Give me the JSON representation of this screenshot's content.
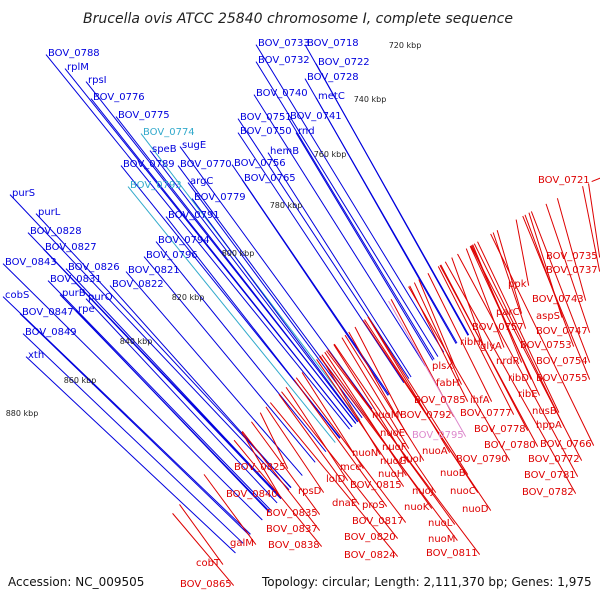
{
  "title": "Brucella ovis ATCC 25840 chromosome I, complete sequence",
  "footer": {
    "accession": "Accession: NC_009505",
    "topology": "Topology: circular; Length: 2,111,370 bp; Genes: 1,975"
  },
  "colors": {
    "forward_label": "#0000dd",
    "reverse_label": "#dd0000",
    "highlight_label": "#33aacc",
    "pink_label": "#dd88cc",
    "backbone": "#888888",
    "ticks": "#228822"
  },
  "kbp_labels": [
    "720 kbp",
    "740 kbp",
    "760 kbp",
    "780 kbp",
    "800 kbp",
    "820 kbp",
    "840 kbp",
    "860 kbp",
    "880 kbp"
  ],
  "forward_genes": [
    {
      "label": "BOV_0788",
      "color": "blue"
    },
    {
      "label": "rplM",
      "color": "blue"
    },
    {
      "label": "rpsI",
      "color": "blue"
    },
    {
      "label": "BOV_0776",
      "color": "blue"
    },
    {
      "label": "BOV_0775",
      "color": "blue"
    },
    {
      "label": "BOV_0774",
      "color": "cyan"
    },
    {
      "label": "speB",
      "color": "blue"
    },
    {
      "label": "sugE",
      "color": "blue"
    },
    {
      "label": "BOV_0789",
      "color": "blue"
    },
    {
      "label": "BOV_0770",
      "color": "blue"
    },
    {
      "label": "BOV_0793",
      "color": "cyan"
    },
    {
      "label": "argC",
      "color": "blue"
    },
    {
      "label": "BOV_0779",
      "color": "blue"
    },
    {
      "label": "BOV_0791",
      "color": "blue"
    },
    {
      "label": "BOV_0794",
      "color": "blue"
    },
    {
      "label": "BOV_0796",
      "color": "blue"
    },
    {
      "label": "BOV_0821",
      "color": "blue"
    },
    {
      "label": "BOV_0822",
      "color": "blue"
    },
    {
      "label": "purS",
      "color": "blue"
    },
    {
      "label": "purL",
      "color": "blue"
    },
    {
      "label": "BOV_0828",
      "color": "blue"
    },
    {
      "label": "BOV_0827",
      "color": "blue"
    },
    {
      "label": "BOV_0843",
      "color": "blue"
    },
    {
      "label": "BOV_0826",
      "color": "blue"
    },
    {
      "label": "BOV_0831",
      "color": "blue"
    },
    {
      "label": "cobS",
      "color": "blue"
    },
    {
      "label": "purB",
      "color": "blue"
    },
    {
      "label": "purQ",
      "color": "blue"
    },
    {
      "label": "rpe",
      "color": "blue"
    },
    {
      "label": "BOV_0847",
      "color": "blue"
    },
    {
      "label": "BOV_0849",
      "color": "blue"
    },
    {
      "label": "xth",
      "color": "blue"
    },
    {
      "label": "BOV_0733",
      "color": "blue"
    },
    {
      "label": "BOV_0718",
      "color": "blue"
    },
    {
      "label": "BOV_0732",
      "color": "blue"
    },
    {
      "label": "BOV_0722",
      "color": "blue"
    },
    {
      "label": "BOV_0728",
      "color": "blue"
    },
    {
      "label": "BOV_0740",
      "color": "blue"
    },
    {
      "label": "metC",
      "color": "blue"
    },
    {
      "label": "BOV_0751",
      "color": "blue"
    },
    {
      "label": "BOV_0741",
      "color": "blue"
    },
    {
      "label": "BOV_0750",
      "color": "blue"
    },
    {
      "label": "rnd",
      "color": "blue"
    },
    {
      "label": "hemB",
      "color": "blue"
    },
    {
      "label": "BOV_0756",
      "color": "blue"
    },
    {
      "label": "BOV_0765",
      "color": "blue"
    }
  ],
  "reverse_genes": [
    {
      "label": "BOV_0721",
      "color": "red"
    },
    {
      "label": "BOV_0735",
      "color": "red"
    },
    {
      "label": "BOV_0737",
      "color": "red"
    },
    {
      "label": "ppk",
      "color": "red"
    },
    {
      "label": "BOV_0743",
      "color": "red"
    },
    {
      "label": "parC",
      "color": "red"
    },
    {
      "label": "aspS",
      "color": "red"
    },
    {
      "label": "BOV_0757",
      "color": "red"
    },
    {
      "label": "BOV_0747",
      "color": "red"
    },
    {
      "label": "ribH",
      "color": "red"
    },
    {
      "label": "glyA",
      "color": "red"
    },
    {
      "label": "BOV_0753",
      "color": "red"
    },
    {
      "label": "nrdR",
      "color": "red"
    },
    {
      "label": "BOV_0754",
      "color": "red"
    },
    {
      "label": "plsX",
      "color": "red"
    },
    {
      "label": "ribD",
      "color": "red"
    },
    {
      "label": "BOV_0755",
      "color": "red"
    },
    {
      "label": "fabH",
      "color": "red"
    },
    {
      "label": "ribE",
      "color": "red"
    },
    {
      "label": "BOV_0785",
      "color": "red"
    },
    {
      "label": "ihfA",
      "color": "red"
    },
    {
      "label": "nusB",
      "color": "red"
    },
    {
      "label": "nuoM",
      "color": "red"
    },
    {
      "label": "BOV_0792",
      "color": "red"
    },
    {
      "label": "BOV_0777",
      "color": "red"
    },
    {
      "label": "hppA",
      "color": "red"
    },
    {
      "label": "nuoE",
      "color": "red"
    },
    {
      "label": "BOV_0778",
      "color": "red"
    },
    {
      "label": "BOV_0795",
      "color": "pink"
    },
    {
      "label": "BOV_0766",
      "color": "red"
    },
    {
      "label": "nuoF",
      "color": "red"
    },
    {
      "label": "nuoA",
      "color": "red"
    },
    {
      "label": "BOV_0780",
      "color": "red"
    },
    {
      "label": "BOV_0772",
      "color": "red"
    },
    {
      "label": "nuoN",
      "color": "red"
    },
    {
      "label": "nuoG",
      "color": "red"
    },
    {
      "label": "BOV_0790",
      "color": "red"
    },
    {
      "label": "BOV_0825",
      "color": "red"
    },
    {
      "label": "mce",
      "color": "red"
    },
    {
      "label": "nuoH",
      "color": "red"
    },
    {
      "label": "nuoI",
      "color": "red"
    },
    {
      "label": "nuoB",
      "color": "red"
    },
    {
      "label": "BOV_0781",
      "color": "red"
    },
    {
      "label": "lolD",
      "color": "red"
    },
    {
      "label": "BOV_0840",
      "color": "red"
    },
    {
      "label": "rpsD",
      "color": "red"
    },
    {
      "label": "BOV_0815",
      "color": "red"
    },
    {
      "label": "nuoJ",
      "color": "red"
    },
    {
      "label": "nuoC",
      "color": "red"
    },
    {
      "label": "BOV_0782",
      "color": "red"
    },
    {
      "label": "dnaE",
      "color": "red"
    },
    {
      "label": "proS",
      "color": "red"
    },
    {
      "label": "nuoK",
      "color": "red"
    },
    {
      "label": "nuoD",
      "color": "red"
    },
    {
      "label": "BOV_0835",
      "color": "red"
    },
    {
      "label": "BOV_0817",
      "color": "red"
    },
    {
      "label": "nuoL",
      "color": "red"
    },
    {
      "label": "BOV_0837",
      "color": "red"
    },
    {
      "label": "BOV_0820",
      "color": "red"
    },
    {
      "label": "nuoM",
      "color": "red"
    },
    {
      "label": "galM",
      "color": "red"
    },
    {
      "label": "BOV_0838",
      "color": "red"
    },
    {
      "label": "BOV_0824",
      "color": "red"
    },
    {
      "label": "BOV_0811",
      "color": "red"
    },
    {
      "label": "cobT",
      "color": "red"
    },
    {
      "label": "BOV_0865",
      "color": "red"
    }
  ]
}
